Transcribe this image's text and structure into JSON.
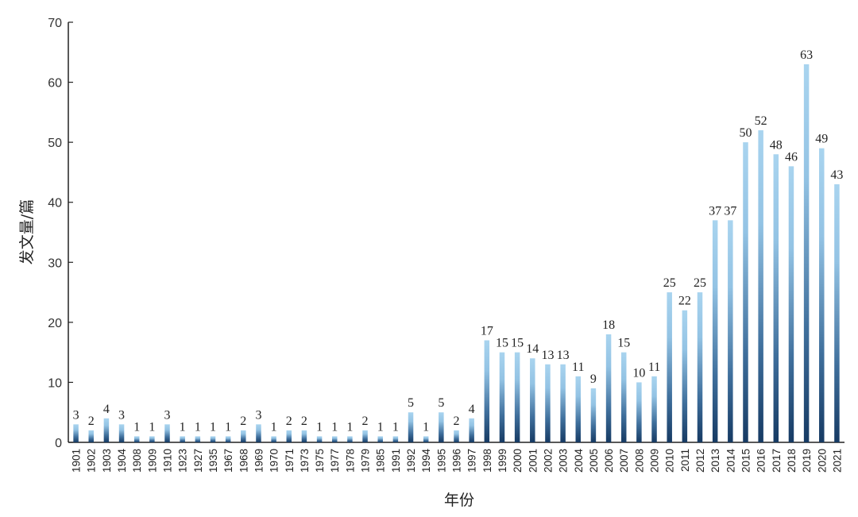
{
  "chart_data": {
    "type": "bar",
    "xlabel": "年份",
    "ylabel": "发文量/篇",
    "ylim": [
      0,
      70
    ],
    "yticks": [
      0,
      10,
      20,
      30,
      40,
      50,
      60,
      70
    ],
    "grid": false,
    "bar_gradient": {
      "top": "#a9d4ef",
      "bottom": "#163a63"
    },
    "categories": [
      "1901",
      "1902",
      "1903",
      "1904",
      "1908",
      "1909",
      "1910",
      "1923",
      "1927",
      "1935",
      "1967",
      "1968",
      "1969",
      "1970",
      "1971",
      "1973",
      "1975",
      "1977",
      "1978",
      "1979",
      "1985",
      "1991",
      "1992",
      "1994",
      "1995",
      "1996",
      "1997",
      "1998",
      "1999",
      "2000",
      "2001",
      "2002",
      "2003",
      "2004",
      "2005",
      "2006",
      "2007",
      "2008",
      "2009",
      "2010",
      "2011",
      "2012",
      "2013",
      "2014",
      "2015",
      "2016",
      "2017",
      "2018",
      "2019",
      "2020",
      "2021"
    ],
    "values": [
      3,
      2,
      4,
      3,
      1,
      1,
      3,
      1,
      1,
      1,
      1,
      2,
      3,
      1,
      2,
      2,
      1,
      1,
      1,
      2,
      1,
      1,
      5,
      1,
      5,
      2,
      4,
      17,
      15,
      15,
      14,
      13,
      13,
      11,
      9,
      18,
      15,
      10,
      11,
      25,
      22,
      25,
      37,
      37,
      50,
      52,
      48,
      46,
      63,
      49,
      43
    ]
  }
}
